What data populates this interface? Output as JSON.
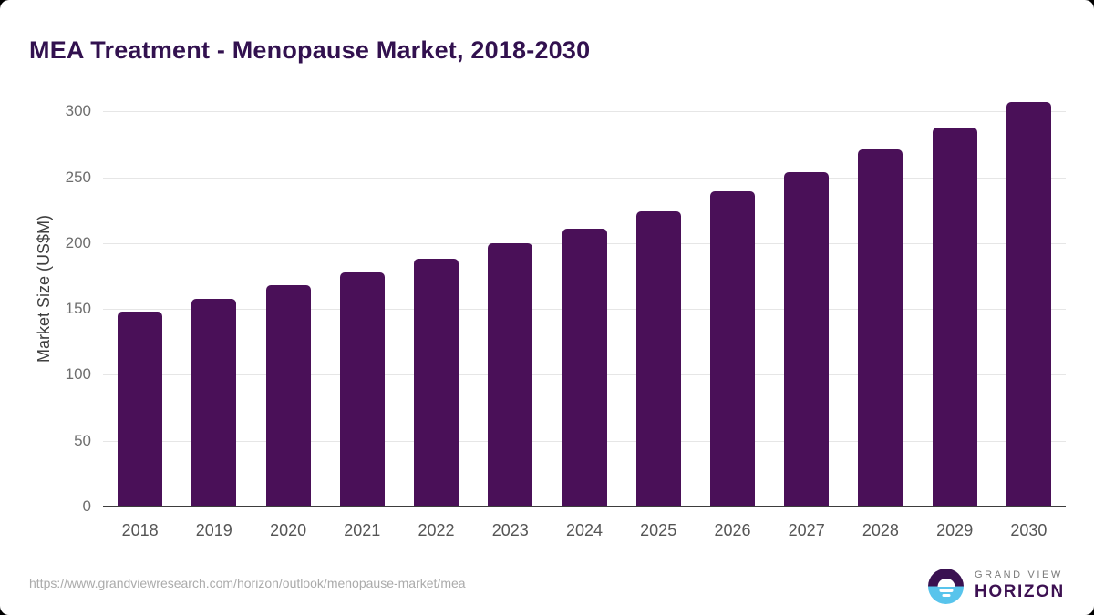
{
  "chart_data": {
    "type": "bar",
    "title": "MEA Treatment - Menopause Market, 2018-2030",
    "xlabel": "",
    "ylabel": "Market Size (US$M)",
    "categories": [
      "2018",
      "2019",
      "2020",
      "2021",
      "2022",
      "2023",
      "2024",
      "2025",
      "2026",
      "2027",
      "2028",
      "2029",
      "2030"
    ],
    "values": [
      148,
      158,
      168,
      178,
      188,
      200,
      211,
      224,
      239,
      254,
      271,
      288,
      307
    ],
    "yticks": [
      0,
      50,
      100,
      150,
      200,
      250,
      300
    ],
    "ylim": [
      0,
      310
    ],
    "grid": true,
    "legend": false,
    "colors": {
      "bar": "#4a1058",
      "title": "#32114f",
      "gridline": "#e6e6e6",
      "axis": "#3d3d3d",
      "y_tick_label": "#6e6e6e",
      "x_tick_label": "#555555",
      "y_axis_title": "#3f3f3f"
    }
  },
  "footer": {
    "source_url": "https://www.grandviewresearch.com/horizon/outlook/menopause-market/mea",
    "source_url_color": "#ababab",
    "logo": {
      "top_text": "GRAND VIEW",
      "bottom_text": "HORIZON",
      "top_text_color": "#7a7a7a",
      "bottom_text_color": "#3d1152",
      "circle_purple": "#3a1151",
      "circle_blue": "#58c4ec"
    }
  }
}
